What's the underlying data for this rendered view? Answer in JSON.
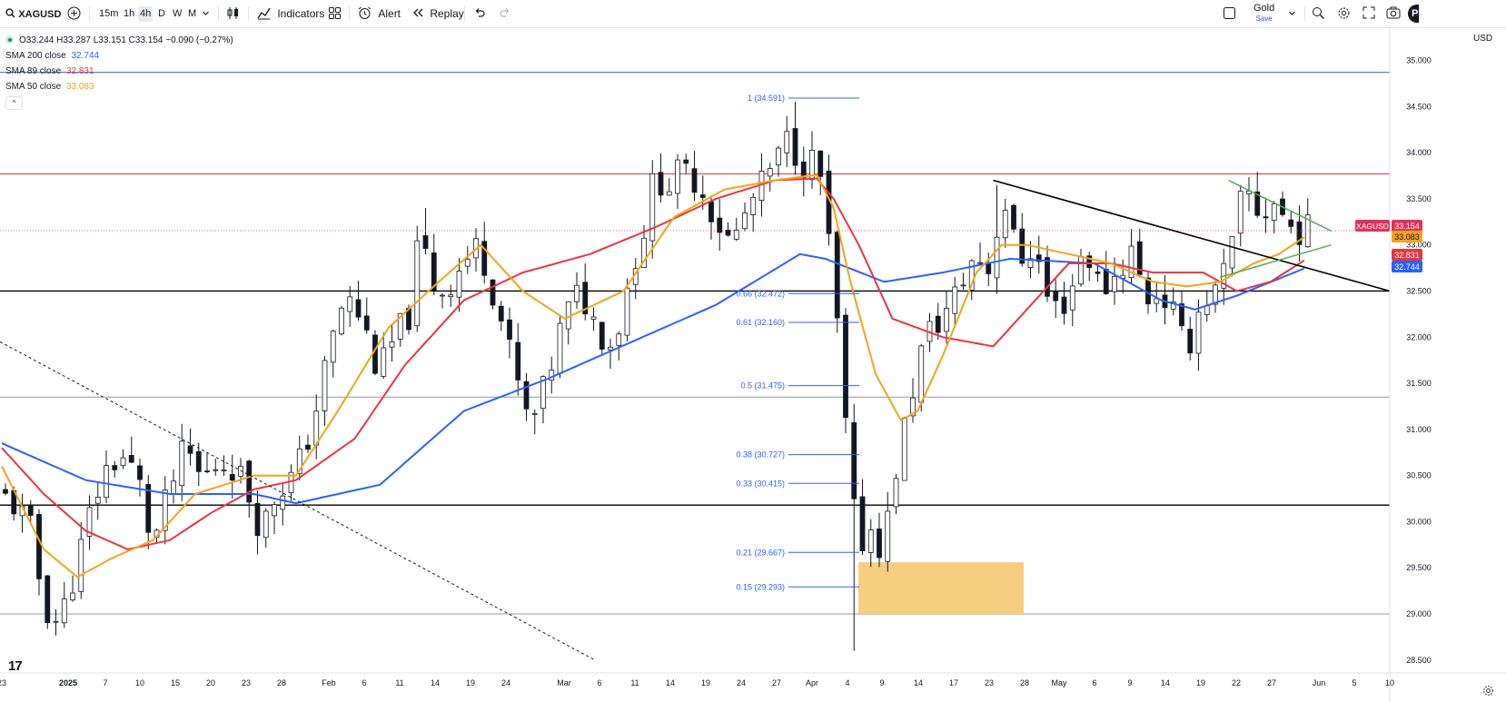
{
  "toolbar": {
    "symbol": "XAGUSD",
    "timeframes": [
      "15m",
      "1h",
      "4h",
      "D",
      "W",
      "M"
    ],
    "active_timeframe": "4h",
    "indicators_label": "Indicators",
    "alert_label": "Alert",
    "replay_label": "Replay",
    "layout_name": "Gold",
    "layout_sub": "Save",
    "publish_label": "P"
  },
  "legend": {
    "ohlc": "O33.244 H33.287 L33.151 C33.154 −0.090 (−0.27%)",
    "sma200_label": "SMA 200 close",
    "sma200_value": "32.744",
    "sma89_label": "SMA 89 close",
    "sma89_value": "32.831",
    "sma50_label": "SMA 50 close",
    "sma50_value": "33.083",
    "collapse": "^"
  },
  "currency": "USD",
  "tv_logo": "17",
  "colors": {
    "sma200": "#2962ff",
    "sma89": "#e8363c",
    "sma50": "#f7a21b",
    "candle": "#131722",
    "fib": "#2962ff",
    "zone": "#f7cd7f",
    "price_tag": "#e0335a",
    "trendline": "#000000",
    "wedge": "#4caf50"
  },
  "chart_data": {
    "type": "candlestick",
    "symbol": "XAGUSD",
    "timeframe": "4h",
    "yaxis": {
      "min": 28.4,
      "max": 35.3,
      "ticks": [
        "35.000",
        "34.500",
        "34.000",
        "33.500",
        "33.000",
        "32.500",
        "32.000",
        "31.500",
        "31.000",
        "30.500",
        "30.000",
        "29.500",
        "29.000",
        "28.500"
      ]
    },
    "xaxis": {
      "ticks": [
        "23",
        "2025",
        "7",
        "10",
        "15",
        "20",
        "23",
        "28",
        "Feb",
        "6",
        "11",
        "14",
        "19",
        "24",
        "Mar",
        "6",
        "11",
        "14",
        "19",
        "24",
        "27",
        "Apr",
        "4",
        "9",
        "14",
        "17",
        "23",
        "28",
        "May",
        "6",
        "9",
        "14",
        "19",
        "22",
        "27",
        "Jun",
        "5",
        "10"
      ]
    },
    "price_path": [
      [
        0,
        30.3
      ],
      [
        2,
        30.15
      ],
      [
        4,
        29.85
      ],
      [
        5,
        29.1
      ],
      [
        7,
        28.9
      ],
      [
        9,
        29.5
      ],
      [
        11,
        30.2
      ],
      [
        13,
        30.65
      ],
      [
        15,
        30.7
      ],
      [
        17,
        30.3
      ],
      [
        18,
        29.7
      ],
      [
        20,
        30.3
      ],
      [
        22,
        30.8
      ],
      [
        24,
        30.45
      ],
      [
        26,
        30.65
      ],
      [
        28,
        30.6
      ],
      [
        30,
        30.2
      ],
      [
        31,
        29.9
      ],
      [
        33,
        30.35
      ],
      [
        35,
        30.5
      ],
      [
        37,
        31.0
      ],
      [
        39,
        31.8
      ],
      [
        41,
        32.45
      ],
      [
        43,
        32.2
      ],
      [
        45,
        31.6
      ],
      [
        47,
        32.0
      ],
      [
        49,
        32.3
      ],
      [
        50,
        33.3
      ],
      [
        51,
        32.6
      ],
      [
        53,
        32.5
      ],
      [
        55,
        32.8
      ],
      [
        57,
        33.0
      ],
      [
        59,
        32.4
      ],
      [
        61,
        31.7
      ],
      [
        63,
        31.0
      ],
      [
        65,
        31.5
      ],
      [
        67,
        32.2
      ],
      [
        69,
        32.5
      ],
      [
        71,
        32.1
      ],
      [
        73,
        31.9
      ],
      [
        75,
        32.7
      ],
      [
        77,
        33.3
      ],
      [
        78,
        33.85
      ],
      [
        79,
        33.6
      ],
      [
        81,
        33.8
      ],
      [
        83,
        33.7
      ],
      [
        85,
        33.3
      ],
      [
        87,
        33.0
      ],
      [
        89,
        33.4
      ],
      [
        91,
        33.7
      ],
      [
        93,
        34.0
      ],
      [
        94,
        34.2
      ],
      [
        95,
        33.9
      ],
      [
        97,
        33.9
      ],
      [
        98,
        33.6
      ],
      [
        99,
        32.6
      ],
      [
        100,
        31.8
      ],
      [
        101,
        30.5
      ],
      [
        102,
        29.8
      ],
      [
        103,
        29.8
      ],
      [
        104,
        30.0
      ],
      [
        105,
        29.6
      ],
      [
        106,
        30.3
      ],
      [
        108,
        31.2
      ],
      [
        110,
        32.0
      ],
      [
        112,
        32.2
      ],
      [
        114,
        32.5
      ],
      [
        116,
        32.9
      ],
      [
        118,
        32.7
      ],
      [
        119,
        33.5
      ],
      [
        120,
        33.4
      ],
      [
        121,
        32.8
      ],
      [
        123,
        33.0
      ],
      [
        125,
        32.3
      ],
      [
        127,
        32.4
      ],
      [
        129,
        33.0
      ],
      [
        131,
        32.5
      ],
      [
        133,
        32.7
      ],
      [
        135,
        33.0
      ],
      [
        136,
        32.4
      ],
      [
        138,
        32.5
      ],
      [
        140,
        32.2
      ],
      [
        141,
        31.8
      ],
      [
        143,
        32.4
      ],
      [
        145,
        32.5
      ],
      [
        147,
        33.1
      ],
      [
        148,
        33.65
      ],
      [
        150,
        33.3
      ],
      [
        152,
        33.5
      ],
      [
        153,
        33.2
      ],
      [
        155,
        33.154
      ]
    ],
    "key_candles": {
      "jan_low": 28.85,
      "feb_high": 33.4,
      "mar_high": 34.55,
      "apr_low": 28.6,
      "apr_high": 33.65,
      "may_high": 33.65
    },
    "series": [
      {
        "name": "SMA 200 close",
        "last": 32.744,
        "path": [
          [
            0,
            30.85
          ],
          [
            10,
            30.45
          ],
          [
            20,
            30.3
          ],
          [
            30,
            30.3
          ],
          [
            35,
            30.2
          ],
          [
            45,
            30.4
          ],
          [
            55,
            31.2
          ],
          [
            65,
            31.55
          ],
          [
            75,
            31.95
          ],
          [
            85,
            32.35
          ],
          [
            95,
            32.9
          ],
          [
            98,
            32.85
          ],
          [
            105,
            32.6
          ],
          [
            112,
            32.7
          ],
          [
            120,
            32.85
          ],
          [
            130,
            32.8
          ],
          [
            138,
            32.4
          ],
          [
            142,
            32.3
          ],
          [
            147,
            32.45
          ],
          [
            155,
            32.744
          ]
        ]
      },
      {
        "name": "SMA 89 close",
        "last": 32.831,
        "path": [
          [
            0,
            30.8
          ],
          [
            5,
            30.3
          ],
          [
            10,
            29.9
          ],
          [
            15,
            29.7
          ],
          [
            20,
            29.8
          ],
          [
            25,
            30.1
          ],
          [
            30,
            30.35
          ],
          [
            35,
            30.45
          ],
          [
            42,
            30.9
          ],
          [
            48,
            31.7
          ],
          [
            55,
            32.4
          ],
          [
            62,
            32.7
          ],
          [
            70,
            32.9
          ],
          [
            78,
            33.2
          ],
          [
            85,
            33.5
          ],
          [
            92,
            33.7
          ],
          [
            97,
            33.72
          ],
          [
            99,
            33.5
          ],
          [
            102,
            33.0
          ],
          [
            106,
            32.2
          ],
          [
            112,
            32.0
          ],
          [
            118,
            31.9
          ],
          [
            122,
            32.3
          ],
          [
            127,
            32.8
          ],
          [
            132,
            32.8
          ],
          [
            137,
            32.7
          ],
          [
            143,
            32.7
          ],
          [
            147,
            32.5
          ],
          [
            151,
            32.6
          ],
          [
            155,
            32.831
          ]
        ]
      },
      {
        "name": "SMA 50 close",
        "last": 33.083,
        "path": [
          [
            0,
            30.6
          ],
          [
            5,
            29.7
          ],
          [
            9,
            29.4
          ],
          [
            13,
            29.6
          ],
          [
            18,
            29.8
          ],
          [
            23,
            30.3
          ],
          [
            30,
            30.5
          ],
          [
            35,
            30.5
          ],
          [
            40,
            31.2
          ],
          [
            46,
            32.1
          ],
          [
            52,
            32.6
          ],
          [
            57,
            33.0
          ],
          [
            62,
            32.5
          ],
          [
            67,
            32.2
          ],
          [
            74,
            32.5
          ],
          [
            80,
            33.3
          ],
          [
            86,
            33.6
          ],
          [
            92,
            33.7
          ],
          [
            97,
            33.76
          ],
          [
            99,
            33.4
          ],
          [
            101,
            32.6
          ],
          [
            104,
            31.6
          ],
          [
            107,
            31.1
          ],
          [
            109,
            31.2
          ],
          [
            112,
            31.8
          ],
          [
            116,
            32.7
          ],
          [
            119,
            33.0
          ],
          [
            122,
            33.0
          ],
          [
            127,
            32.9
          ],
          [
            132,
            32.8
          ],
          [
            137,
            32.6
          ],
          [
            141,
            32.55
          ],
          [
            145,
            32.6
          ],
          [
            149,
            32.8
          ],
          [
            152,
            32.9
          ],
          [
            155,
            33.083
          ]
        ]
      }
    ],
    "fibonacci": [
      {
        "level": "1",
        "price": 34.591
      },
      {
        "level": "0.66",
        "price": 32.472
      },
      {
        "level": "0.61",
        "price": 32.16
      },
      {
        "level": "0.5",
        "price": 31.475
      },
      {
        "level": "0.38",
        "price": 30.727
      },
      {
        "level": "0.33",
        "price": 30.415
      },
      {
        "level": "0.21",
        "price": 29.667
      },
      {
        "level": "0.15",
        "price": 29.293
      }
    ],
    "horizontal_levels": [
      {
        "price": 33.77,
        "color": "#e8363c"
      },
      {
        "price": 32.5,
        "color": "#000000"
      },
      {
        "price": 31.35,
        "color": "#9598a1"
      },
      {
        "price": 30.18,
        "color": "#000000"
      },
      {
        "price": 29.0,
        "color": "#9598a1"
      },
      {
        "price": 34.87,
        "color": "#2962ff"
      }
    ],
    "demand_zone": {
      "price_from": 29.0,
      "price_to": 29.56
    },
    "price_tags": [
      {
        "label": "XAGUSD",
        "value": "33.154",
        "color": "#e0335a"
      },
      {
        "value": "33.083",
        "color": "#f7a21b"
      },
      {
        "value": "32.831",
        "color": "#e8363c"
      },
      {
        "value": "32.744",
        "color": "#2962ff"
      }
    ],
    "trendline": {
      "from": [
        118,
        33.7
      ],
      "to": [
        164,
        32.5
      ]
    },
    "wedge": {
      "upper": [
        [
          146,
          33.7
        ],
        [
          155,
          33.15
        ]
      ],
      "lower": [
        [
          145,
          32.65
        ],
        [
          155,
          33.0
        ]
      ]
    }
  }
}
